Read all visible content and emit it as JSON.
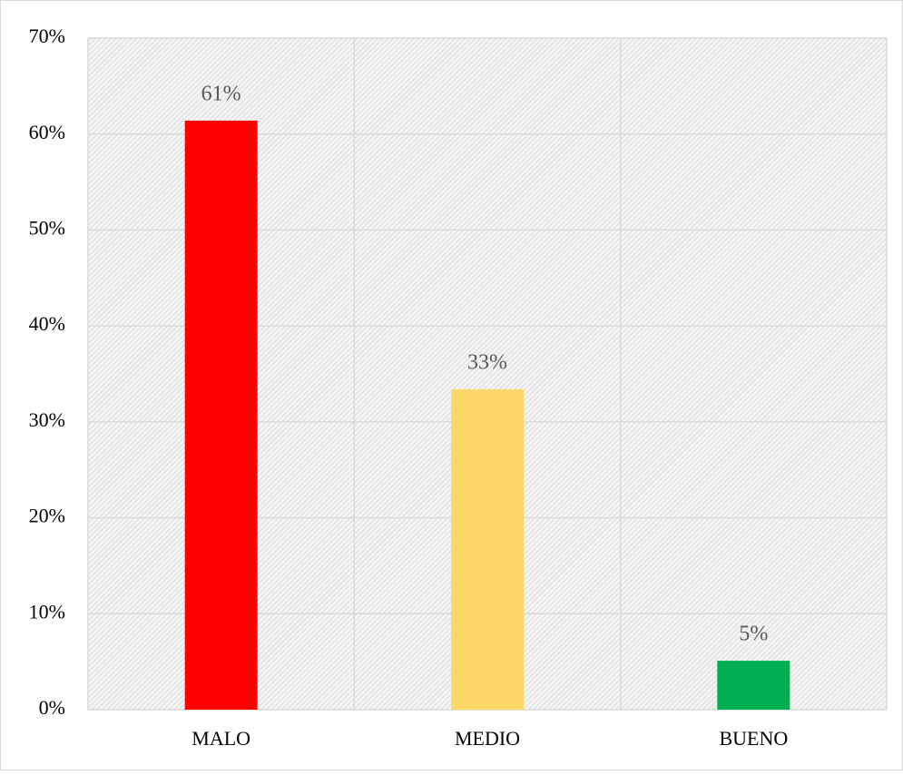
{
  "chart_data": {
    "type": "bar",
    "categories": [
      "MALO",
      "MEDIO",
      "BUENO"
    ],
    "values": [
      61.4,
      33.4,
      5.1
    ],
    "value_labels": [
      "61%",
      "33%",
      "5%"
    ],
    "colors": [
      "#ff0000",
      "#fdd868",
      "#00b050"
    ],
    "ylim": [
      0,
      70
    ],
    "yticks": [
      {
        "value": 0,
        "label": "0%"
      },
      {
        "value": 10,
        "label": "10%"
      },
      {
        "value": 20,
        "label": "20%"
      },
      {
        "value": 30,
        "label": "30%"
      },
      {
        "value": 40,
        "label": "40%"
      },
      {
        "value": 50,
        "label": "50%"
      },
      {
        "value": 60,
        "label": "60%"
      },
      {
        "value": 70,
        "label": "70%"
      }
    ],
    "grid": true
  }
}
